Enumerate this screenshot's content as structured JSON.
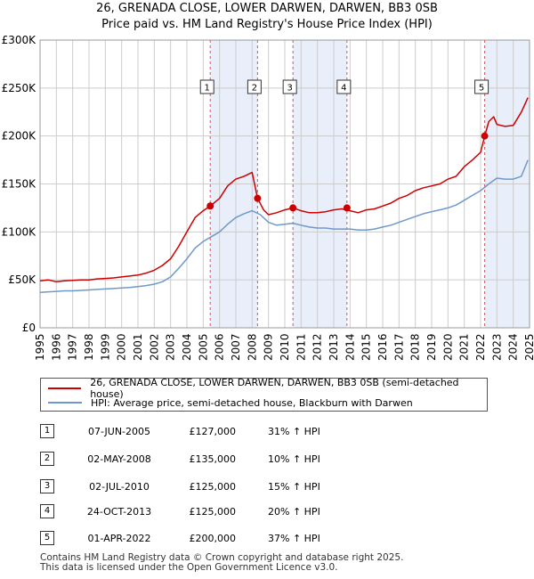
{
  "header": {
    "title": "26, GRENADA CLOSE, LOWER DARWEN, DARWEN, BB3 0SB",
    "subtitle": "Price paid vs. HM Land Registry's House Price Index (HPI)"
  },
  "colors": {
    "property": "#cc0000",
    "hpi": "#6f98cc",
    "shade": "#e8eefa",
    "grid": "#cccccc",
    "vline": "#e05050"
  },
  "chart_data": {
    "type": "line",
    "title": "26, GRENADA CLOSE, LOWER DARWEN, DARWEN, BB3 0SB",
    "subtitle": "Price paid vs. HM Land Registry's House Price Index (HPI)",
    "xlim": [
      1995,
      2025
    ],
    "ylim": [
      0,
      300000
    ],
    "x_ticks": [
      "1995",
      "1996",
      "1997",
      "1998",
      "1999",
      "2000",
      "2001",
      "2002",
      "2003",
      "2004",
      "2005",
      "2006",
      "2007",
      "2008",
      "2009",
      "2010",
      "2011",
      "2012",
      "2013",
      "2014",
      "2015",
      "2016",
      "2017",
      "2018",
      "2019",
      "2020",
      "2021",
      "2022",
      "2023",
      "2024",
      "2025"
    ],
    "y_ticks": [
      {
        "value": 0,
        "label": "£0"
      },
      {
        "value": 50000,
        "label": "£50K"
      },
      {
        "value": 100000,
        "label": "£100K"
      },
      {
        "value": 150000,
        "label": "£150K"
      },
      {
        "value": 200000,
        "label": "£200K"
      },
      {
        "value": 250000,
        "label": "£250K"
      },
      {
        "value": 300000,
        "label": "£300K"
      }
    ],
    "grid": true,
    "legend_placement": "below",
    "series": [
      {
        "name": "26, GRENADA CLOSE, LOWER DARWEN, DARWEN, BB3 0SB (semi-detached house)",
        "color": "#cc0000",
        "x": [
          1995.0,
          1995.5,
          1996.0,
          1996.5,
          1997.0,
          1997.5,
          1998.0,
          1998.5,
          1999.0,
          1999.5,
          2000.0,
          2000.5,
          2001.0,
          2001.5,
          2002.0,
          2002.5,
          2003.0,
          2003.5,
          2004.0,
          2004.5,
          2005.0,
          2005.43,
          2006.0,
          2006.5,
          2007.0,
          2007.5,
          2008.0,
          2008.33,
          2008.7,
          2009.0,
          2009.5,
          2010.0,
          2010.5,
          2011.0,
          2011.5,
          2012.0,
          2012.5,
          2013.0,
          2013.5,
          2014.0,
          2014.5,
          2015.0,
          2015.5,
          2016.0,
          2016.5,
          2017.0,
          2017.5,
          2018.0,
          2018.5,
          2019.0,
          2019.5,
          2020.0,
          2020.5,
          2021.0,
          2021.5,
          2022.0,
          2022.25,
          2022.5,
          2022.8,
          2023.0,
          2023.5,
          2024.0,
          2024.5,
          2024.9
        ],
        "y": [
          49000,
          50000,
          48000,
          49000,
          49500,
          50000,
          50000,
          51000,
          51500,
          52000,
          53000,
          54000,
          55000,
          57000,
          60000,
          65000,
          72000,
          85000,
          100000,
          115000,
          122000,
          127000,
          135000,
          148000,
          155000,
          158000,
          162000,
          135000,
          123000,
          118000,
          120000,
          123000,
          125000,
          122000,
          120000,
          120000,
          121000,
          123000,
          124000,
          122000,
          120000,
          123000,
          124000,
          127000,
          130000,
          135000,
          138000,
          143000,
          146000,
          148000,
          150000,
          155000,
          158000,
          168000,
          175000,
          183000,
          200000,
          215000,
          220000,
          212000,
          210000,
          211000,
          225000,
          240000
        ]
      },
      {
        "name": "HPI: Average price, semi-detached house, Blackburn with Darwen",
        "color": "#6f98cc",
        "x": [
          1995.0,
          1995.5,
          1996.0,
          1996.5,
          1997.0,
          1997.5,
          1998.0,
          1998.5,
          1999.0,
          1999.5,
          2000.0,
          2000.5,
          2001.0,
          2001.5,
          2002.0,
          2002.5,
          2003.0,
          2003.5,
          2004.0,
          2004.5,
          2005.0,
          2005.5,
          2006.0,
          2006.5,
          2007.0,
          2007.5,
          2008.0,
          2008.5,
          2009.0,
          2009.5,
          2010.0,
          2010.5,
          2011.0,
          2011.5,
          2012.0,
          2012.5,
          2013.0,
          2013.5,
          2014.0,
          2014.5,
          2015.0,
          2015.5,
          2016.0,
          2016.5,
          2017.0,
          2017.5,
          2018.0,
          2018.5,
          2019.0,
          2019.5,
          2020.0,
          2020.5,
          2021.0,
          2021.5,
          2022.0,
          2022.5,
          2023.0,
          2023.5,
          2024.0,
          2024.5,
          2024.9
        ],
        "y": [
          37000,
          37500,
          38000,
          38500,
          38500,
          39000,
          39500,
          40000,
          40500,
          41000,
          41500,
          42000,
          43000,
          44000,
          45500,
          48000,
          53000,
          62000,
          72000,
          83000,
          90000,
          95000,
          100000,
          108000,
          115000,
          119000,
          122000,
          118000,
          110000,
          107000,
          108000,
          109000,
          107000,
          105000,
          104000,
          104000,
          103000,
          103000,
          103000,
          102000,
          102000,
          103000,
          105000,
          107000,
          110000,
          113000,
          116000,
          119000,
          121000,
          123000,
          125000,
          128000,
          133000,
          138000,
          143000,
          150000,
          156000,
          155000,
          155000,
          158000,
          175000
        ]
      }
    ],
    "markers": [
      {
        "label": "1",
        "x": 2005.43,
        "y": 127000
      },
      {
        "label": "2",
        "x": 2008.33,
        "y": 135000
      },
      {
        "label": "3",
        "x": 2010.5,
        "y": 125000
      },
      {
        "label": "4",
        "x": 2013.81,
        "y": 125000
      },
      {
        "label": "5",
        "x": 2022.25,
        "y": 200000
      }
    ],
    "shaded_ranges": [
      [
        2005.43,
        2008.33
      ],
      [
        2010.5,
        2013.81
      ],
      [
        2022.25,
        2025
      ]
    ]
  },
  "legend": {
    "property_label": "26, GRENADA CLOSE, LOWER DARWEN, DARWEN, BB3 0SB (semi-detached house)",
    "hpi_label": "HPI: Average price, semi-detached house, Blackburn with Darwen"
  },
  "sales": [
    {
      "num": "1",
      "date": "07-JUN-2005",
      "price": "£127,000",
      "hpi": "31% ↑ HPI"
    },
    {
      "num": "2",
      "date": "02-MAY-2008",
      "price": "£135,000",
      "hpi": "10% ↑ HPI"
    },
    {
      "num": "3",
      "date": "02-JUL-2010",
      "price": "£125,000",
      "hpi": "15% ↑ HPI"
    },
    {
      "num": "4",
      "date": "24-OCT-2013",
      "price": "£125,000",
      "hpi": "20% ↑ HPI"
    },
    {
      "num": "5",
      "date": "01-APR-2022",
      "price": "£200,000",
      "hpi": "37% ↑ HPI"
    }
  ],
  "footer": {
    "line1": "Contains HM Land Registry data © Crown copyright and database right 2025.",
    "line2": "This data is licensed under the Open Government Licence v3.0."
  }
}
